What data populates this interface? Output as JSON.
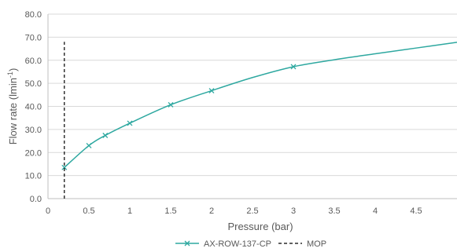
{
  "chart_data": {
    "type": "line",
    "xlabel": "Pressure (bar)",
    "ylabel": "Flow rate (lmin⁻¹)",
    "xlim": [
      0,
      5
    ],
    "ylim": [
      0,
      80
    ],
    "x_ticks": [
      "0",
      "0.5",
      "1",
      "1.5",
      "2",
      "2.5",
      "3",
      "3.5",
      "4",
      "4.5"
    ],
    "y_ticks": [
      "0.0",
      "10.0",
      "20.0",
      "30.0",
      "40.0",
      "50.0",
      "60.0",
      "70.0",
      "80.0"
    ],
    "grid": "horizontal",
    "legend_position": "bottom",
    "series": [
      {
        "name": "AX-ROW-137-CP",
        "style": "solid-with-x-markers",
        "color": "#2ea8a0",
        "x": [
          0.2,
          0.5,
          0.7,
          1.0,
          1.5,
          2.0,
          3.0
        ],
        "y": [
          13.5,
          23.0,
          27.4,
          32.7,
          40.7,
          46.8,
          57.2
        ],
        "trend_x": [
          0.2,
          0.5,
          0.7,
          1.0,
          1.5,
          2.0,
          2.5,
          3.0,
          3.5,
          4.0,
          4.5,
          5.0
        ],
        "trend_y": [
          13.5,
          23.0,
          27.4,
          32.7,
          40.7,
          46.8,
          52.5,
          57.2,
          60.2,
          62.8,
          65.3,
          67.8
        ]
      },
      {
        "name": "MOP",
        "style": "dashed",
        "color": "#000000",
        "x": [
          0.2,
          0.2
        ],
        "y": [
          0,
          68
        ]
      }
    ]
  }
}
